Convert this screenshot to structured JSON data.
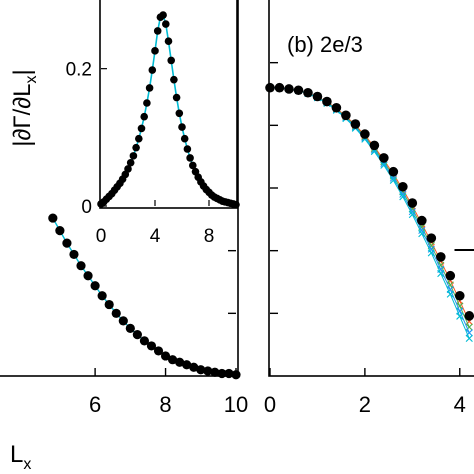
{
  "chart_data": [
    {
      "type": "scatter",
      "panel": "a",
      "title": "",
      "xlabel": "L",
      "xlabel_sub": "x",
      "ylabel": "",
      "xlim": [
        3.3,
        10
      ],
      "ylim": [
        0,
        0.3
      ],
      "xticks": [
        6,
        8,
        10
      ],
      "marker_color": "#000000",
      "line_colors": [
        "#00bcd4",
        "#4caf50"
      ],
      "grid": false,
      "points": [
        {
          "x": 4.8,
          "y": 0.126
        },
        {
          "x": 5.0,
          "y": 0.116
        },
        {
          "x": 5.2,
          "y": 0.106
        },
        {
          "x": 5.4,
          "y": 0.097
        },
        {
          "x": 5.6,
          "y": 0.088
        },
        {
          "x": 5.8,
          "y": 0.08
        },
        {
          "x": 6.0,
          "y": 0.072
        },
        {
          "x": 6.2,
          "y": 0.064
        },
        {
          "x": 6.4,
          "y": 0.057
        },
        {
          "x": 6.6,
          "y": 0.05
        },
        {
          "x": 6.8,
          "y": 0.044
        },
        {
          "x": 7.0,
          "y": 0.038
        },
        {
          "x": 7.2,
          "y": 0.033
        },
        {
          "x": 7.4,
          "y": 0.028
        },
        {
          "x": 7.6,
          "y": 0.024
        },
        {
          "x": 7.8,
          "y": 0.02
        },
        {
          "x": 8.0,
          "y": 0.016
        },
        {
          "x": 8.2,
          "y": 0.013
        },
        {
          "x": 8.4,
          "y": 0.011
        },
        {
          "x": 8.6,
          "y": 0.009
        },
        {
          "x": 8.8,
          "y": 0.007
        },
        {
          "x": 9.0,
          "y": 0.005
        },
        {
          "x": 9.2,
          "y": 0.004
        },
        {
          "x": 9.4,
          "y": 0.003
        },
        {
          "x": 9.6,
          "y": 0.002
        },
        {
          "x": 9.8,
          "y": 0.002
        },
        {
          "x": 10.0,
          "y": 0.001
        }
      ]
    },
    {
      "type": "scatter",
      "panel": "a-inset",
      "title": "",
      "ylabel": "|∂Γ/∂L",
      "ylabel_sub": "x",
      "ylabel_end": "|",
      "xlim": [
        0,
        10
      ],
      "ylim": [
        0,
        0.3
      ],
      "xticks": [
        0,
        4,
        8
      ],
      "yticks": [
        0,
        0.2
      ],
      "marker_color": "#000000",
      "line_colors": [
        "#00bcd4",
        "#4caf50"
      ],
      "points": [
        {
          "x": 0.0,
          "y": 0.003
        },
        {
          "x": 0.2,
          "y": 0.006
        },
        {
          "x": 0.4,
          "y": 0.01
        },
        {
          "x": 0.6,
          "y": 0.014
        },
        {
          "x": 0.8,
          "y": 0.018
        },
        {
          "x": 1.0,
          "y": 0.023
        },
        {
          "x": 1.2,
          "y": 0.028
        },
        {
          "x": 1.4,
          "y": 0.033
        },
        {
          "x": 1.6,
          "y": 0.039
        },
        {
          "x": 1.8,
          "y": 0.046
        },
        {
          "x": 2.0,
          "y": 0.054
        },
        {
          "x": 2.2,
          "y": 0.063
        },
        {
          "x": 2.4,
          "y": 0.073
        },
        {
          "x": 2.6,
          "y": 0.085
        },
        {
          "x": 2.8,
          "y": 0.098
        },
        {
          "x": 3.0,
          "y": 0.113
        },
        {
          "x": 3.2,
          "y": 0.13
        },
        {
          "x": 3.4,
          "y": 0.15
        },
        {
          "x": 3.6,
          "y": 0.172
        },
        {
          "x": 3.8,
          "y": 0.198
        },
        {
          "x": 4.0,
          "y": 0.226
        },
        {
          "x": 4.2,
          "y": 0.255
        },
        {
          "x": 4.4,
          "y": 0.275
        },
        {
          "x": 4.6,
          "y": 0.278
        },
        {
          "x": 4.8,
          "y": 0.265
        },
        {
          "x": 5.0,
          "y": 0.24
        },
        {
          "x": 5.2,
          "y": 0.212
        },
        {
          "x": 5.4,
          "y": 0.184
        },
        {
          "x": 5.6,
          "y": 0.158
        },
        {
          "x": 5.8,
          "y": 0.135
        },
        {
          "x": 6.0,
          "y": 0.115
        },
        {
          "x": 6.2,
          "y": 0.098
        },
        {
          "x": 6.4,
          "y": 0.083
        },
        {
          "x": 6.6,
          "y": 0.07
        },
        {
          "x": 6.8,
          "y": 0.059
        },
        {
          "x": 7.0,
          "y": 0.05
        },
        {
          "x": 7.2,
          "y": 0.042
        },
        {
          "x": 7.4,
          "y": 0.035
        },
        {
          "x": 7.6,
          "y": 0.029
        },
        {
          "x": 7.8,
          "y": 0.024
        },
        {
          "x": 8.0,
          "y": 0.02
        },
        {
          "x": 8.2,
          "y": 0.016
        },
        {
          "x": 8.4,
          "y": 0.013
        },
        {
          "x": 8.6,
          "y": 0.011
        },
        {
          "x": 8.8,
          "y": 0.009
        },
        {
          "x": 9.0,
          "y": 0.007
        },
        {
          "x": 9.2,
          "y": 0.006
        },
        {
          "x": 9.4,
          "y": 0.005
        },
        {
          "x": 9.6,
          "y": 0.004
        },
        {
          "x": 9.8,
          "y": 0.003
        },
        {
          "x": 10.0,
          "y": 0.002
        }
      ]
    },
    {
      "type": "scatter",
      "panel": "b",
      "title": "(b) 2e/3",
      "xlabel": "",
      "ylabel": "",
      "xlim": [
        0,
        4.3
      ],
      "ylim": [
        0,
        0.3
      ],
      "xticks": [
        0,
        2,
        4
      ],
      "marker_color": "#000000",
      "cross_colors": [
        "#ff5722",
        "#4caf50",
        "#2196f3",
        "#00bcd4"
      ],
      "points": [
        {
          "x": 0.0,
          "y": 0.23
        },
        {
          "x": 0.2,
          "y": 0.23
        },
        {
          "x": 0.4,
          "y": 0.229
        },
        {
          "x": 0.6,
          "y": 0.228
        },
        {
          "x": 0.8,
          "y": 0.226
        },
        {
          "x": 1.0,
          "y": 0.223
        },
        {
          "x": 1.2,
          "y": 0.219
        },
        {
          "x": 1.4,
          "y": 0.214
        },
        {
          "x": 1.6,
          "y": 0.208
        },
        {
          "x": 1.8,
          "y": 0.201
        },
        {
          "x": 2.0,
          "y": 0.193
        },
        {
          "x": 2.2,
          "y": 0.184
        },
        {
          "x": 2.4,
          "y": 0.174
        },
        {
          "x": 2.6,
          "y": 0.163
        },
        {
          "x": 2.8,
          "y": 0.151
        },
        {
          "x": 3.0,
          "y": 0.138
        },
        {
          "x": 3.2,
          "y": 0.124
        },
        {
          "x": 3.4,
          "y": 0.11
        },
        {
          "x": 3.6,
          "y": 0.095
        },
        {
          "x": 3.8,
          "y": 0.08
        },
        {
          "x": 4.0,
          "y": 0.064
        },
        {
          "x": 4.2,
          "y": 0.048
        }
      ]
    }
  ]
}
